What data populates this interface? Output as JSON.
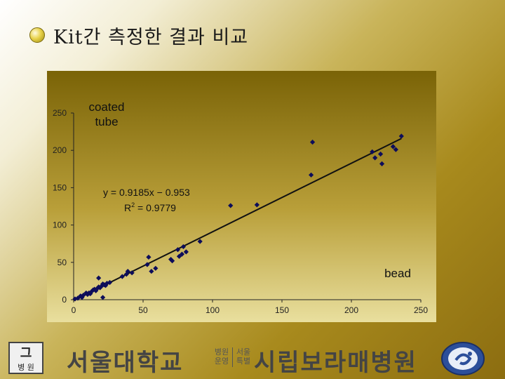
{
  "slide": {
    "title": "Kit간 측정한 결과 비교"
  },
  "chart_data": {
    "type": "scatter",
    "ylabel_line1": "coated",
    "ylabel_line2": "tube",
    "xlabel": "bead",
    "equation": "y = 0.9185x − 0.953",
    "r2_label": "R",
    "r2_sup": "2",
    "r2_value": " = 0.9779",
    "xlim": [
      0,
      250
    ],
    "ylim": [
      0,
      250
    ],
    "x_ticks": [
      0,
      50,
      100,
      150,
      200,
      250
    ],
    "y_ticks": [
      0,
      50,
      100,
      150,
      200,
      250
    ],
    "trendline": {
      "slope": 0.9185,
      "intercept": -0.953,
      "x_range": [
        0,
        236
      ]
    },
    "grid": false,
    "background": "#7a6307",
    "point_color": "#0d0d5a",
    "points": [
      [
        1,
        1
      ],
      [
        3,
        2
      ],
      [
        5,
        5
      ],
      [
        6,
        3
      ],
      [
        7,
        6
      ],
      [
        9,
        9
      ],
      [
        10,
        7
      ],
      [
        11,
        9
      ],
      [
        12,
        8
      ],
      [
        13,
        11
      ],
      [
        14,
        13
      ],
      [
        15,
        14
      ],
      [
        16,
        12
      ],
      [
        17,
        15
      ],
      [
        18,
        17
      ],
      [
        18,
        29
      ],
      [
        19,
        16
      ],
      [
        20,
        18
      ],
      [
        21,
        21
      ],
      [
        21,
        3
      ],
      [
        22,
        20
      ],
      [
        23,
        19
      ],
      [
        24,
        22
      ],
      [
        26,
        23
      ],
      [
        35,
        31
      ],
      [
        38,
        34
      ],
      [
        39,
        38
      ],
      [
        42,
        36
      ],
      [
        53,
        47
      ],
      [
        54,
        57
      ],
      [
        56,
        38
      ],
      [
        59,
        42
      ],
      [
        70,
        54
      ],
      [
        71,
        52
      ],
      [
        75,
        67
      ],
      [
        76,
        58
      ],
      [
        78,
        61
      ],
      [
        79,
        71
      ],
      [
        81,
        64
      ],
      [
        91,
        78
      ],
      [
        113,
        126
      ],
      [
        132,
        127
      ],
      [
        172,
        211
      ],
      [
        171,
        167
      ],
      [
        215,
        198
      ],
      [
        217,
        190
      ],
      [
        221,
        195
      ],
      [
        222,
        182
      ],
      [
        230,
        205
      ],
      [
        232,
        201
      ],
      [
        236,
        219
      ]
    ]
  },
  "footer": {
    "left_logo_top": "그",
    "left_logo_bottom": "병 원",
    "university": "서울대학교",
    "sub1": "병원 운영",
    "sub2": "서울 특별",
    "hospital": "시립보라매병원"
  }
}
